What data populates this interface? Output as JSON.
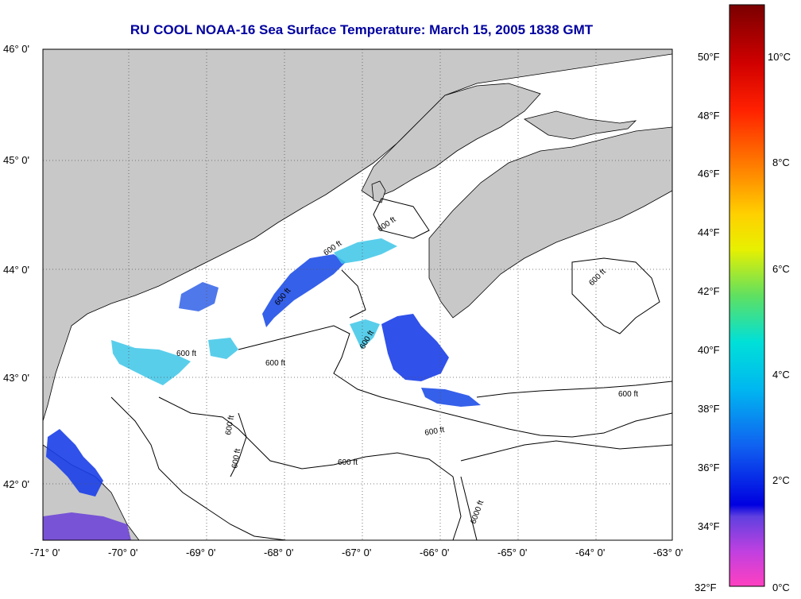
{
  "title": "RU COOL  NOAA-16  Sea Surface Temperature:  March 15, 2005 1838 GMT",
  "lat_labels": [
    "46° 0'",
    "45° 0'",
    "44° 0'",
    "43° 0'",
    "42° 0'"
  ],
  "lon_labels": [
    "-71° 0'",
    "-70° 0'",
    "-69° 0'",
    "-68° 0'",
    "-67° 0'",
    "-66° 0'",
    "-65° 0'",
    "-64° 0'",
    "-63° 0'"
  ],
  "contour_labels": [
    "600 ft",
    "600 ft",
    "600 ft",
    "600 ft",
    "600 ft",
    "600 ft",
    "600 ft",
    "600 ft",
    "600 ft",
    "600 ft",
    "600 ft",
    "600 ft",
    "6000 ft"
  ],
  "colorbar": {
    "fahrenheit": [
      "50°F",
      "48°F",
      "46°F",
      "44°F",
      "42°F",
      "40°F",
      "38°F",
      "36°F",
      "34°F",
      "32°F"
    ],
    "celsius": [
      "10°C",
      "8°C",
      "6°C",
      "4°C",
      "2°C",
      "0°C"
    ]
  },
  "colors": {
    "land": "#c8c8c8",
    "title": "#0000a0",
    "cold_blue": "#1a3ee8",
    "cyan": "#3cc6e8"
  }
}
